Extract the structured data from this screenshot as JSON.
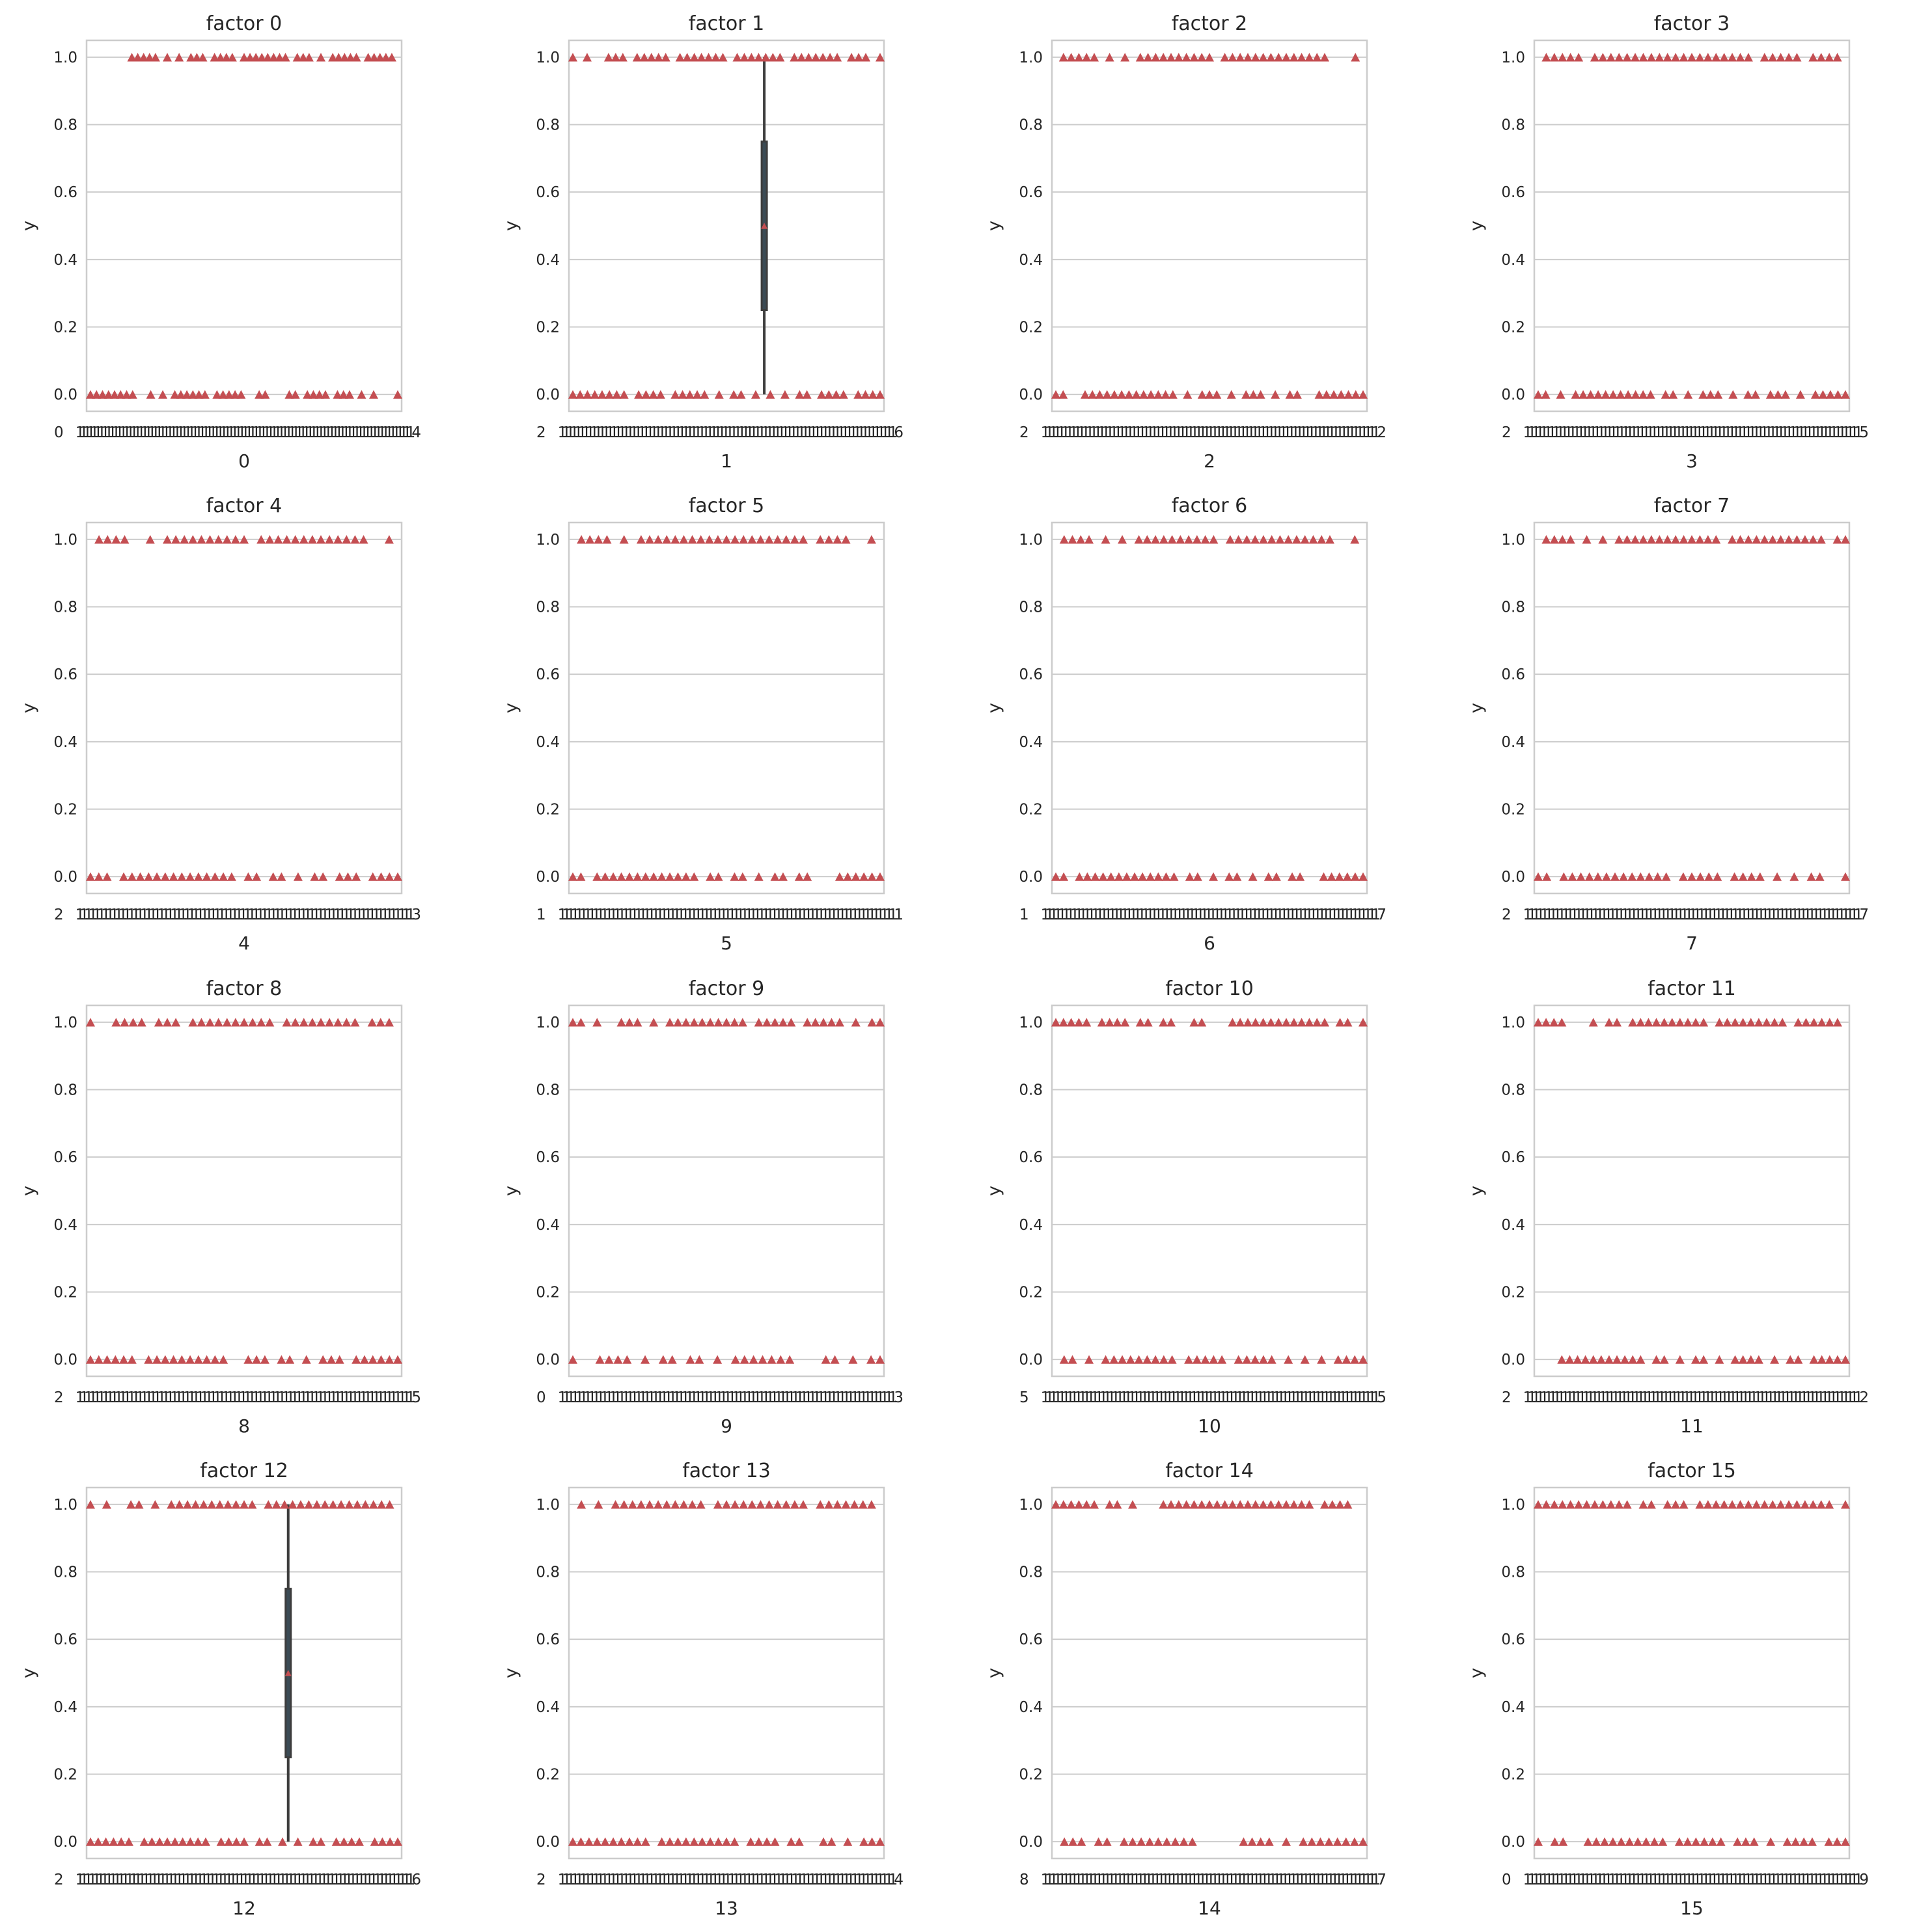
{
  "figure": {
    "background": "#ffffff",
    "grid_color": "#cccccc",
    "spine_color": "#cccccc",
    "text_color": "#262626",
    "marker_color": "#c44e52",
    "box_color": "#3b4b55",
    "whisker_color": "#3d3d3d",
    "ylabel": "y",
    "yticks": [
      "0.0",
      "0.2",
      "0.4",
      "0.6",
      "0.8",
      "1.0"
    ]
  },
  "chart_data": [
    {
      "type": "box",
      "title": "factor 0",
      "xlabel": "0",
      "ylabel": "y",
      "ylim": [
        -0.05,
        1.05
      ],
      "grid": true,
      "x_tick_labels_first": "0",
      "x_tick_labels_last": "4",
      "ones_mask": "00000001111101010111011110111111110111010111110111110",
      "zeros_mask": "1111111100101011111101111100110001101111011101010001",
      "box": null
    },
    {
      "type": "box",
      "title": "factor 1",
      "xlabel": "1",
      "ylabel": "y",
      "ylim": [
        -0.05,
        1.05
      ],
      "grid": true,
      "x_tick_labels_first": "2",
      "x_tick_labels_last": "6",
      "ones_mask": "10100111011111011111110111111101111111011101",
      "zeros_mask": "1111111101111011111010110101010110111101111",
      "box": {
        "whislo": 0.0,
        "q1": 0.25,
        "med": 0.5,
        "q3": 0.75,
        "whishi": 1.0,
        "mean": 0.5,
        "position": 0.62
      }
    },
    {
      "type": "box",
      "title": "factor 2",
      "xlabel": "2",
      "ylabel": "y",
      "ylim": [
        -0.05,
        1.05
      ],
      "grid": true,
      "x_tick_labels_first": "2",
      "x_tick_labels_last": "2",
      "ones_mask": "01111101010111111111101111111111111100010",
      "zeros_mask": "1100111111111111101011101011101011001111111",
      "box": null
    },
    {
      "type": "box",
      "title": "factor 3",
      "xlabel": "3",
      "ylabel": "y",
      "ylim": [
        -0.05,
        1.05
      ],
      "grid": true,
      "x_tick_labels_first": "2",
      "x_tick_labels_last": "5",
      "ones_mask": "011111011111111111111111111011111011110",
      "zeros_mask": "110101111111111101101011101011011101011111",
      "box": null
    },
    {
      "type": "box",
      "title": "factor 4",
      "xlabel": "4",
      "ylabel": "y",
      "ylim": [
        -0.05,
        1.05
      ],
      "grid": true,
      "x_tick_labels_first": "2",
      "x_tick_labels_last": "3",
      "ones_mask": "0111100101111111111011111111111110010",
      "zeros_mask": "11101111111111111101101101011011101111",
      "box": null
    },
    {
      "type": "box",
      "title": "factor 5",
      "xlabel": "5",
      "ylabel": "y",
      "ylim": [
        -0.05,
        1.05
      ],
      "grid": true,
      "x_tick_labels_first": "1",
      "x_tick_labels_last": "1",
      "ones_mask": "0111101011111111111111111111011110010",
      "zeros_mask": "110111111111111101101101011011000111111",
      "box": null
    },
    {
      "type": "box",
      "title": "factor 6",
      "xlabel": "6",
      "ylabel": "y",
      "ylim": [
        -0.05,
        1.05
      ],
      "grid": true,
      "x_tick_labels_first": "1",
      "x_tick_labels_last": "7",
      "ones_mask": "01111010101111111111011111111111110010",
      "zeros_mask": "1101111111111111011010110101101100111111",
      "box": null
    },
    {
      "type": "box",
      "title": "factor 7",
      "xlabel": "7",
      "ylabel": "y",
      "ylim": [
        -0.05,
        1.05
      ],
      "grid": true,
      "x_tick_labels_first": "2",
      "x_tick_labels_last": "7",
      "ones_mask": "011110101011111111111110111111111111011",
      "zeros_mask": "1101111111111111011111011110101011001",
      "box": null
    },
    {
      "type": "box",
      "title": "factor 8",
      "xlabel": "8",
      "ylabel": "y",
      "ylim": [
        -0.05,
        1.05
      ],
      "grid": true,
      "x_tick_labels_first": "2",
      "x_tick_labels_last": "5",
      "ones_mask": "1001111011101111111111011111111101110",
      "zeros_mask": "11111101111111111001110110101110111111",
      "box": null
    },
    {
      "type": "box",
      "title": "factor 9",
      "xlabel": "9",
      "ylabel": "y",
      "ylim": [
        -0.05,
        1.05
      ],
      "grid": true,
      "x_tick_labels_first": "0",
      "x_tick_labels_last": "3",
      "ones_mask": "110100111010111111111101111101111101011",
      "zeros_mask": "10011110101101101011111110001101011",
      "box": null
    },
    {
      "type": "box",
      "title": "factor 10",
      "xlabel": "10",
      "ylabel": "y",
      "ylim": [
        -0.05,
        1.05
      ],
      "grid": true,
      "x_tick_labels_first": "5",
      "x_tick_labels_last": "5",
      "ones_mask": "11111011110110110011000111111111111101101",
      "zeros_mask": "01101011111111101111101111101010101111",
      "box": null
    },
    {
      "type": "box",
      "title": "factor 11",
      "xlabel": "11",
      "ylabel": "y",
      "ylim": [
        -0.05,
        1.05
      ],
      "grid": true,
      "x_tick_labels_first": "2",
      "x_tick_labels_last": "2",
      "ones_mask": "1111000101101111111111011111111101111110",
      "zeros_mask": "0001111111111101101011010111101011011111",
      "box": null
    },
    {
      "type": "box",
      "title": "factor 12",
      "xlabel": "12",
      "ylabel": "y",
      "ylim": [
        -0.05,
        1.05
      ],
      "grid": true,
      "x_tick_labels_first": "2",
      "x_tick_labels_last": "6",
      "ones_mask": "101001101011111111111011111111111111110",
      "zeros_mask": "11111101111111110111101101010110111101111",
      "box": {
        "whislo": 0.0,
        "q1": 0.25,
        "med": 0.5,
        "q3": 0.75,
        "whishi": 1.0,
        "mean": 0.5,
        "position": 0.64
      }
    },
    {
      "type": "box",
      "title": "factor 13",
      "xlabel": "13",
      "ylabel": "y",
      "ylim": [
        -0.05,
        1.05
      ],
      "grid": true,
      "x_tick_labels_first": "2",
      "x_tick_labels_last": "4",
      "ones_mask": "0101011111111111011111111111011111110",
      "zeros_mask": "111111111101111111111011110110011010111",
      "box": null
    },
    {
      "type": "box",
      "title": "factor 14",
      "xlabel": "14",
      "ylabel": "y",
      "ylim": [
        -0.05,
        1.05
      ],
      "grid": true,
      "x_tick_labels_first": "8",
      "x_tick_labels_last": "7",
      "ones_mask": "11111101101000111111111111111111110111100",
      "zeros_mask": "0111011011111111100000111101011111111",
      "box": null
    },
    {
      "type": "box",
      "title": "factor 15",
      "xlabel": "15",
      "ylabel": "y",
      "ylim": [
        -0.05,
        1.05
      ],
      "grid": true,
      "x_tick_labels_first": "0",
      "x_tick_labels_last": "9",
      "ones_mask": "111111111111011011101111111111111111101",
      "zeros_mask": "10110011111111110111111011101011110111",
      "box": null
    }
  ]
}
